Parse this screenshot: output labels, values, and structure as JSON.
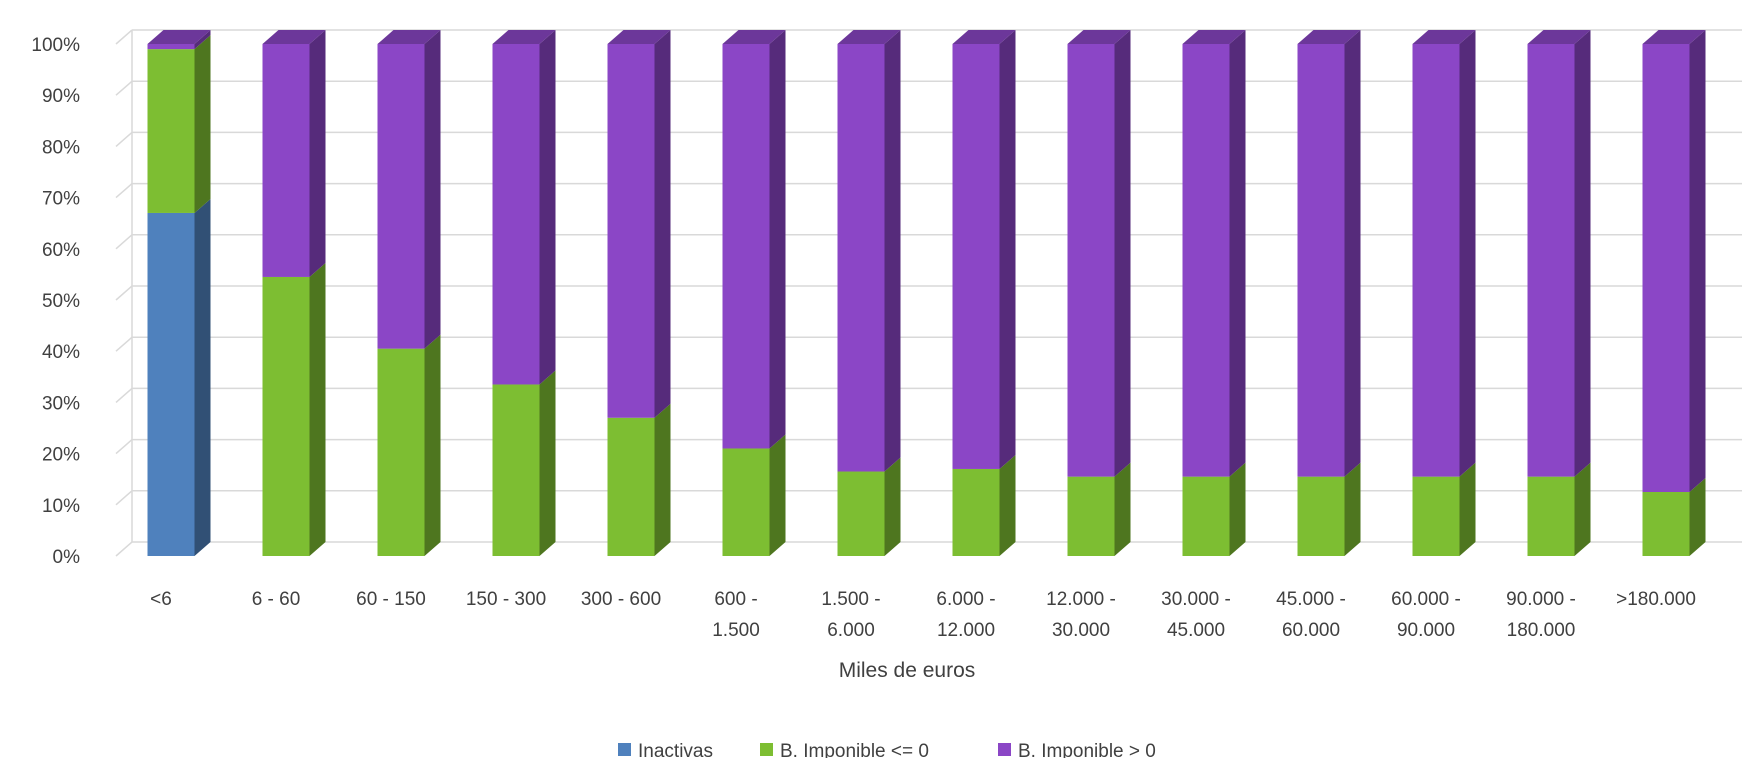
{
  "chart_data": {
    "type": "bar",
    "stacked": true,
    "percent": true,
    "three_d": true,
    "title": "",
    "xlabel": "Miles de euros",
    "ylabel": "",
    "ylim": [
      0,
      100
    ],
    "y_ticks": [
      "0%",
      "10%",
      "20%",
      "30%",
      "40%",
      "50%",
      "60%",
      "70%",
      "80%",
      "90%",
      "100%"
    ],
    "grid": true,
    "legend_position": "bottom",
    "categories": [
      "<6",
      "6 - 60",
      "60 - 150",
      "150 - 300",
      "300 - 600",
      "600 - 1.500",
      "1.500 - 6.000",
      "6.000 - 12.000",
      "12.000 - 30.000",
      "30.000 - 45.000",
      "45.000 - 60.000",
      "60.000 - 90.000",
      "90.000 - 180.000",
      ">180.000"
    ],
    "category_lines": [
      [
        "<6"
      ],
      [
        "6 - 60"
      ],
      [
        "60 - 150"
      ],
      [
        "150 - 300"
      ],
      [
        "300 - 600"
      ],
      [
        "600 -",
        "1.500"
      ],
      [
        "1.500 -",
        "6.000"
      ],
      [
        "6.000 -",
        "12.000"
      ],
      [
        "12.000 -",
        "30.000"
      ],
      [
        "30.000 -",
        "45.000"
      ],
      [
        "45.000 -",
        "60.000"
      ],
      [
        "60.000 -",
        "90.000"
      ],
      [
        "90.000 -",
        "180.000"
      ],
      [
        ">180.000"
      ]
    ],
    "series": [
      {
        "name": "Inactivas",
        "color": "#4F81BD",
        "values": [
          67,
          0,
          0,
          0,
          0,
          0,
          0,
          0,
          0,
          0,
          0,
          0,
          0,
          0
        ]
      },
      {
        "name": "B. Imponible <= 0",
        "color": "#7DBE32",
        "values": [
          32,
          54.5,
          40.5,
          33.5,
          27,
          21,
          16.5,
          17,
          15.5,
          15.5,
          15.5,
          15.5,
          15.5,
          12.5
        ]
      },
      {
        "name": "B. Imponible > 0",
        "color": "#8B46C6",
        "values": [
          1,
          45.5,
          59.5,
          66.5,
          73,
          79,
          83.5,
          83,
          84.5,
          84.5,
          84.5,
          84.5,
          84.5,
          87.5
        ]
      }
    ]
  }
}
